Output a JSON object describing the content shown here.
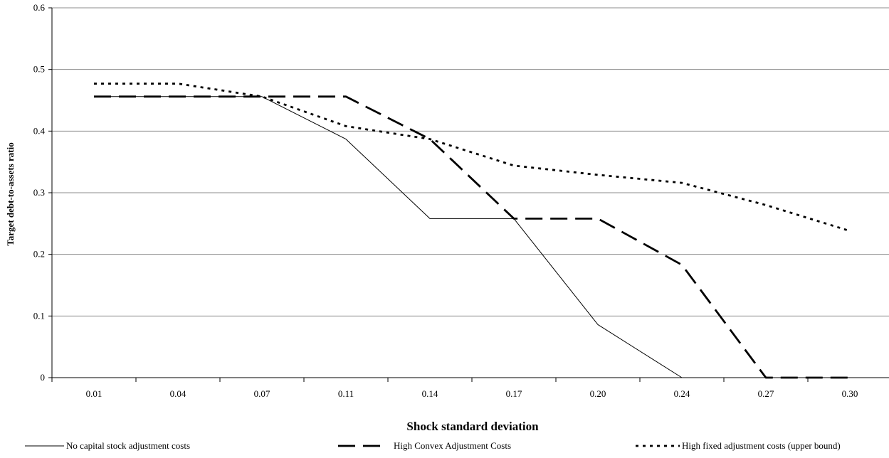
{
  "chart_data": {
    "type": "line",
    "title": "",
    "xlabel": "Shock standard deviation",
    "ylabel": "Target debt-to-assets ratio",
    "categories": [
      "0.01",
      "0.04",
      "0.07",
      "0.11",
      "0.14",
      "0.17",
      "0.20",
      "0.24",
      "0.27",
      "0.30"
    ],
    "ylim": [
      0,
      0.6
    ],
    "yticks": [
      "0",
      "0.1",
      "0.2",
      "0.3",
      "0.4",
      "0.5",
      "0.6"
    ],
    "grid": "horizontal",
    "legend_position": "bottom",
    "series": [
      {
        "name": "No capital stock adjustment costs",
        "style": "solid",
        "color": "#000000",
        "values": [
          0.456,
          0.456,
          0.456,
          0.387,
          0.258,
          0.258,
          0.086,
          0.0,
          0.0,
          0.0
        ]
      },
      {
        "name": "High Convex Adjustment Costs",
        "style": "long-dash",
        "color": "#000000",
        "values": [
          0.456,
          0.456,
          0.456,
          0.456,
          0.387,
          0.258,
          0.258,
          0.183,
          0.0,
          0.0
        ]
      },
      {
        "name": "High fixed adjustment costs (upper bound)",
        "style": "dotted",
        "color": "#000000",
        "values": [
          0.477,
          0.477,
          0.456,
          0.408,
          0.387,
          0.344,
          0.329,
          0.316,
          0.28,
          0.238
        ]
      }
    ]
  }
}
